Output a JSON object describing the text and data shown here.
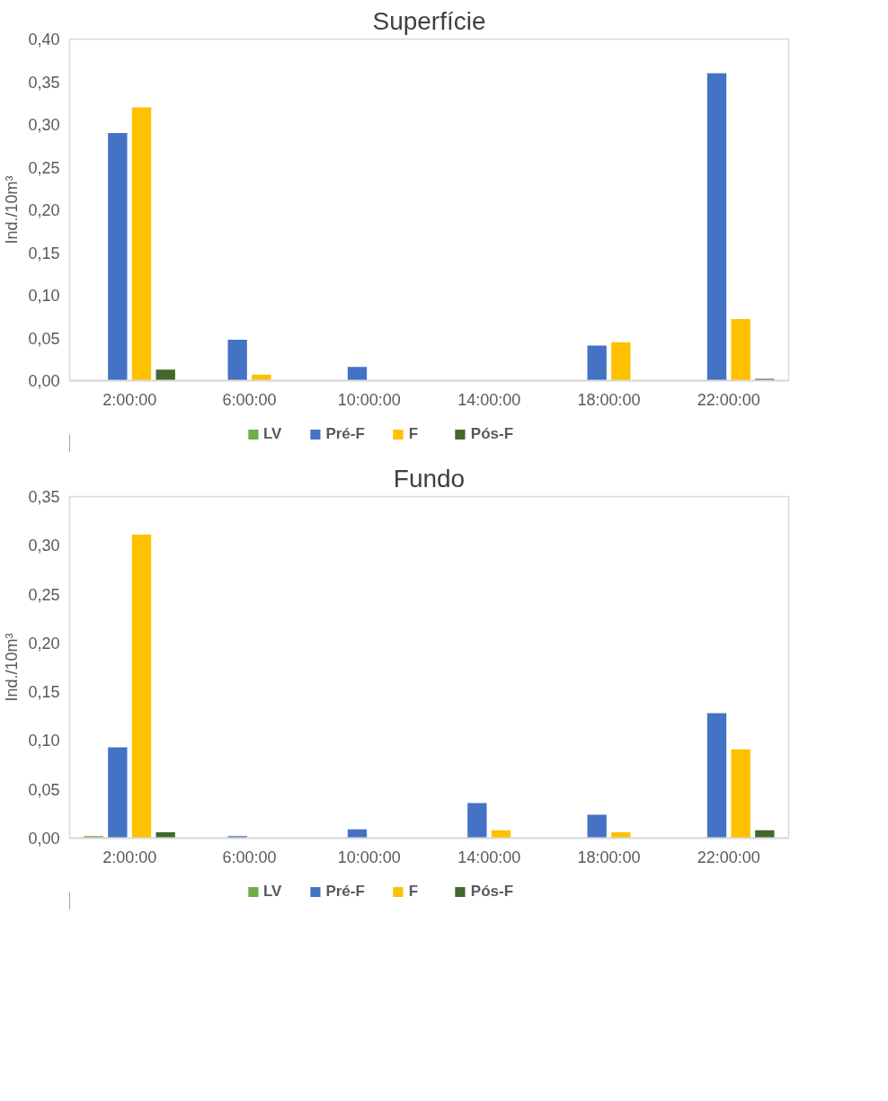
{
  "chart_data": [
    {
      "type": "bar",
      "title": "Superfície",
      "ylabel": "Ind./10m³",
      "categories": [
        "2:00:00",
        "6:00:00",
        "10:00:00",
        "14:00:00",
        "18:00:00",
        "22:00:00"
      ],
      "series": [
        {
          "name": "LV",
          "color": "#70ad47",
          "values": [
            0,
            0,
            0,
            0,
            0,
            0
          ]
        },
        {
          "name": "Pré-F",
          "color": "#4472c4",
          "values": [
            0.29,
            0.048,
            0.016,
            0,
            0.041,
            0.36
          ]
        },
        {
          "name": "F",
          "color": "#ffc000",
          "values": [
            0.32,
            0.007,
            0,
            0,
            0.045,
            0.072
          ]
        },
        {
          "name": "Pós-F",
          "color": "#43682b",
          "values": [
            0.013,
            0,
            0,
            0,
            0,
            0.002
          ]
        }
      ],
      "ylim": [
        0,
        0.4
      ],
      "yticks": [
        {
          "value": 0,
          "label": "0,00"
        },
        {
          "value": 0.05,
          "label": "0,05"
        },
        {
          "value": 0.1,
          "label": "0,10"
        },
        {
          "value": 0.15,
          "label": "0,15"
        },
        {
          "value": 0.2,
          "label": "0,20"
        },
        {
          "value": 0.25,
          "label": "0,25"
        },
        {
          "value": 0.3,
          "label": "0,30"
        },
        {
          "value": 0.35,
          "label": "0,35"
        },
        {
          "value": 0.4,
          "label": "0,40"
        }
      ],
      "legend": "bottom",
      "grid": false
    },
    {
      "type": "bar",
      "title": "Fundo",
      "ylabel": "Ind./10m³",
      "categories": [
        "2:00:00",
        "6:00:00",
        "10:00:00",
        "14:00:00",
        "18:00:00",
        "22:00:00"
      ],
      "series": [
        {
          "name": "LV",
          "color": "#70ad47",
          "values": [
            0.002,
            0,
            0,
            0,
            0,
            0
          ]
        },
        {
          "name": "Pré-F",
          "color": "#4472c4",
          "values": [
            0.093,
            0.002,
            0.009,
            0.036,
            0.024,
            0.128
          ]
        },
        {
          "name": "F",
          "color": "#ffc000",
          "values": [
            0.311,
            0,
            0,
            0.008,
            0.006,
            0.091
          ]
        },
        {
          "name": "Pós-F",
          "color": "#43682b",
          "values": [
            0.006,
            0,
            0,
            0,
            0,
            0.008
          ]
        }
      ],
      "ylim": [
        0,
        0.35
      ],
      "yticks": [
        {
          "value": 0,
          "label": "0,00"
        },
        {
          "value": 0.05,
          "label": "0,05"
        },
        {
          "value": 0.1,
          "label": "0,10"
        },
        {
          "value": 0.15,
          "label": "0,15"
        },
        {
          "value": 0.2,
          "label": "0,20"
        },
        {
          "value": 0.25,
          "label": "0,25"
        },
        {
          "value": 0.3,
          "label": "0,30"
        },
        {
          "value": 0.35,
          "label": "0,35"
        }
      ],
      "legend": "bottom",
      "grid": false
    }
  ]
}
